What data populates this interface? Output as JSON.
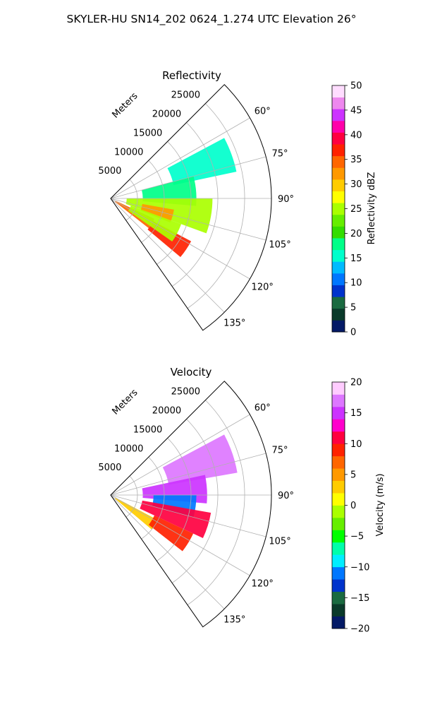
{
  "figure": {
    "suptitle": "SKYLER-HU  SN14_202  0624_1.274 UTC Elevation 26°"
  },
  "colors": {
    "reflectivity_stops": [
      "#041a66",
      "#0a3a2a",
      "#1a6a40",
      "#0033cc",
      "#0077ff",
      "#00bbff",
      "#00ffcc",
      "#00ff88",
      "#33dd00",
      "#66ee00",
      "#aaff00",
      "#ffff00",
      "#ffcc00",
      "#ff9900",
      "#ff6600",
      "#ff2200",
      "#ff0040",
      "#ff00aa",
      "#cc33ff",
      "#ee88ee",
      "#ffddff"
    ],
    "velocity_stops": [
      "#041a66",
      "#0a3a2a",
      "#1a6a40",
      "#0033cc",
      "#0077ff",
      "#00eeff",
      "#00ffaa",
      "#00ff00",
      "#66ee00",
      "#aaff00",
      "#ffff00",
      "#ffcc00",
      "#ff9900",
      "#ff6600",
      "#ff2200",
      "#ff0040",
      "#ff00cc",
      "#cc33ff",
      "#dd77ff",
      "#ffccff"
    ]
  },
  "chart_data": [
    {
      "type": "heatmap",
      "subtype": "polar-sector",
      "title": "Reflectivity",
      "radial_label": "Meters",
      "radial_ticks": [
        5000,
        10000,
        15000,
        20000,
        25000
      ],
      "radial_tick_labels": [
        "5000",
        "10000",
        "15000",
        "20000",
        "25000"
      ],
      "rmax": 30000,
      "angular_range_deg": [
        45,
        145
      ],
      "angular_ticks_deg": [
        60,
        75,
        90,
        105,
        120,
        135
      ],
      "angular_tick_labels": [
        "60°",
        "75°",
        "90°",
        "105°",
        "120°",
        "135°"
      ],
      "grid": true,
      "colorbar": {
        "label": "Reflectivity dBZ",
        "range": [
          0,
          50
        ],
        "ticks": [
          0,
          5,
          10,
          15,
          20,
          25,
          30,
          35,
          40,
          45,
          50
        ],
        "tick_labels": [
          "0",
          "5",
          "10",
          "15",
          "20",
          "25",
          "30",
          "35",
          "40",
          "45",
          "50"
        ]
      },
      "echo_regions": [
        {
          "az": [
            62,
            78
          ],
          "r": [
            12000,
            24000
          ],
          "value": 16
        },
        {
          "az": [
            75,
            95
          ],
          "r": [
            6000,
            16000
          ],
          "value": 19
        },
        {
          "az": [
            90,
            110
          ],
          "r": [
            3000,
            19000
          ],
          "value": 24
        },
        {
          "az": [
            100,
            112
          ],
          "r": [
            6000,
            12000
          ],
          "value": 33
        },
        {
          "az": [
            115,
            128
          ],
          "r": [
            1000,
            9000
          ],
          "value": 34
        },
        {
          "az": [
            118,
            130
          ],
          "r": [
            9000,
            17000
          ],
          "value": 38
        },
        {
          "az": [
            110,
            125
          ],
          "r": [
            4000,
            14000
          ],
          "value": 26
        }
      ]
    },
    {
      "type": "heatmap",
      "subtype": "polar-sector",
      "title": "Velocity",
      "radial_label": "Meters",
      "radial_ticks": [
        5000,
        10000,
        15000,
        20000,
        25000
      ],
      "radial_tick_labels": [
        "5000",
        "10000",
        "15000",
        "20000",
        "25000"
      ],
      "rmax": 30000,
      "angular_range_deg": [
        45,
        145
      ],
      "angular_ticks_deg": [
        60,
        75,
        90,
        105,
        120,
        135
      ],
      "angular_tick_labels": [
        "60°",
        "75°",
        "90°",
        "105°",
        "120°",
        "135°"
      ],
      "grid": true,
      "colorbar": {
        "label": "Velocity (m/s)",
        "range": [
          -20,
          20
        ],
        "ticks": [
          -20,
          -15,
          -10,
          -5,
          0,
          5,
          10,
          15,
          20
        ],
        "tick_labels": [
          "−20",
          "−15",
          "−10",
          "−5",
          "0",
          "5",
          "10",
          "15",
          "20"
        ]
      },
      "echo_regions": [
        {
          "az": [
            62,
            80
          ],
          "r": [
            11000,
            24000
          ],
          "value": 16
        },
        {
          "az": [
            78,
            95
          ],
          "r": [
            6000,
            18000
          ],
          "value": 14
        },
        {
          "az": [
            90,
            105
          ],
          "r": [
            8000,
            16000
          ],
          "value": -12
        },
        {
          "az": [
            100,
            115
          ],
          "r": [
            6000,
            19000
          ],
          "value": 10
        },
        {
          "az": [
            118,
            130
          ],
          "r": [
            1000,
            10000
          ],
          "value": 2
        },
        {
          "az": [
            115,
            128
          ],
          "r": [
            9000,
            17000
          ],
          "value": 9
        }
      ]
    }
  ]
}
